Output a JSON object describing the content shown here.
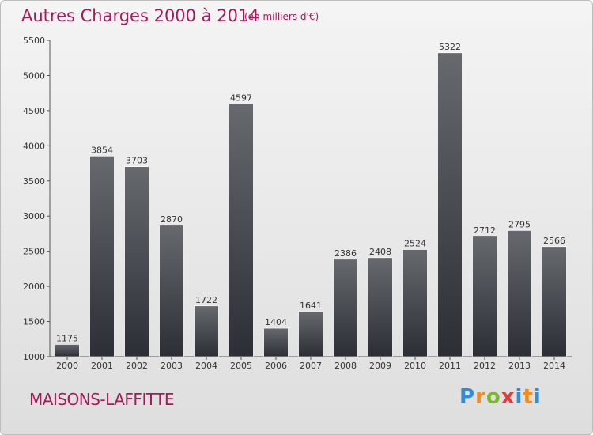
{
  "header": {
    "title": "Autres Charges 2000 à 2014",
    "unit_note": "(en milliers d'€)"
  },
  "footer": {
    "city": "MAISONS-LAFFITTE",
    "logo_letters": [
      "P",
      "r",
      "o",
      "x",
      "i",
      "t",
      "i"
    ]
  },
  "colors": {
    "title": "#a8185a",
    "bar_top": "#66696e",
    "bar_bottom": "#2b2f35"
  },
  "chart_data": {
    "type": "bar",
    "categories": [
      "2000",
      "2001",
      "2002",
      "2003",
      "2004",
      "2005",
      "2006",
      "2007",
      "2008",
      "2009",
      "2010",
      "2011",
      "2012",
      "2013",
      "2014"
    ],
    "values": [
      1175,
      3854,
      3703,
      2870,
      1722,
      4597,
      1404,
      1641,
      2386,
      2408,
      2524,
      5322,
      2712,
      2795,
      2566
    ],
    "title": "Autres Charges 2000 à 2014",
    "xlabel": "",
    "ylabel": "",
    "ylim": [
      1000,
      5500
    ],
    "yticks": [
      1000,
      1500,
      2000,
      2500,
      3000,
      3500,
      4000,
      4500,
      5000,
      5500
    ],
    "grid": false,
    "legend": "none"
  }
}
